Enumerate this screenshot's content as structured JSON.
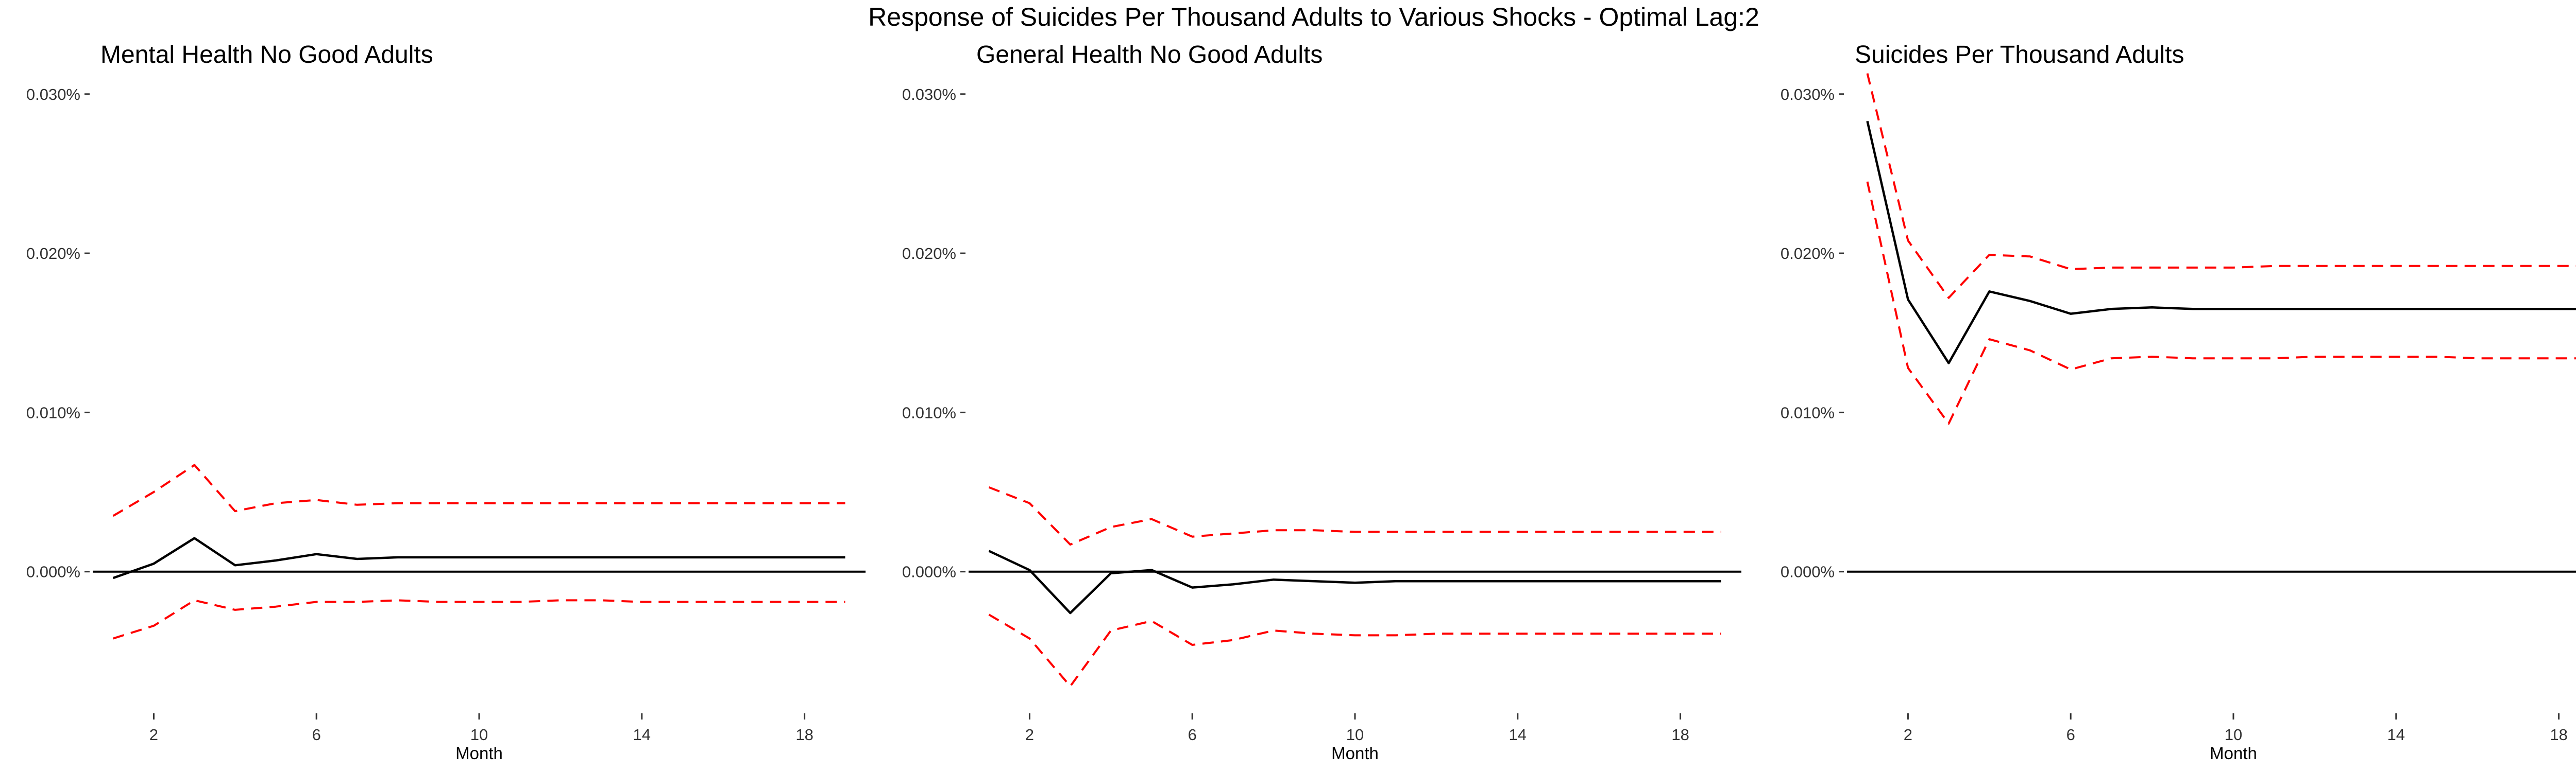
{
  "title": "Response of Suicides Per Thousand Adults to Various Shocks - Optimal Lag:2",
  "colors": {
    "response": "#000000",
    "ci": "#FF0000",
    "zero_line": "#000000"
  },
  "chart_data": [
    {
      "type": "line",
      "title": "Mental Health No Good Adults",
      "xlabel": "Month",
      "ylabel": "",
      "xlim": [
        0.5,
        19.5
      ],
      "ylim": [
        -0.01,
        0.033
      ],
      "x_ticks": [
        2,
        6,
        10,
        14,
        18
      ],
      "x_tick_labels": [
        "2",
        "6",
        "10",
        "14",
        "18"
      ],
      "y_ticks": [
        0,
        0.01,
        0.02,
        0.03
      ],
      "y_tick_labels": [
        "0.000%",
        "0.010%",
        "0.020%",
        "0.030%"
      ],
      "zero_line": true,
      "grid": false,
      "x": [
        1,
        2,
        3,
        4,
        5,
        6,
        7,
        8,
        9,
        10,
        11,
        12,
        13,
        14,
        15,
        16,
        17,
        18,
        19
      ],
      "series": [
        {
          "role": "response",
          "style": "solid",
          "values": [
            -0.0004,
            0.0005,
            0.0021,
            0.0004,
            0.0007,
            0.0011,
            0.0008,
            0.0009,
            0.0009,
            0.0009,
            0.0009,
            0.0009,
            0.0009,
            0.0009,
            0.0009,
            0.0009,
            0.0009,
            0.0009,
            0.0009
          ]
        },
        {
          "role": "upper",
          "style": "dashed",
          "values": [
            0.0035,
            0.005,
            0.0067,
            0.0038,
            0.0043,
            0.0045,
            0.0042,
            0.0043,
            0.0043,
            0.0043,
            0.0043,
            0.0043,
            0.0043,
            0.0043,
            0.0043,
            0.0043,
            0.0043,
            0.0043,
            0.0043
          ]
        },
        {
          "role": "lower",
          "style": "dashed",
          "values": [
            -0.0042,
            -0.0034,
            -0.0018,
            -0.0024,
            -0.0022,
            -0.0019,
            -0.0019,
            -0.0018,
            -0.0019,
            -0.0019,
            -0.0019,
            -0.0018,
            -0.0018,
            -0.0019,
            -0.0019,
            -0.0019,
            -0.0019,
            -0.0019,
            -0.0019
          ]
        }
      ]
    },
    {
      "type": "line",
      "title": "General Health No Good Adults",
      "xlabel": "Month",
      "ylabel": "",
      "xlim": [
        0.5,
        19.5
      ],
      "ylim": [
        -0.01,
        0.033
      ],
      "x_ticks": [
        2,
        6,
        10,
        14,
        18
      ],
      "x_tick_labels": [
        "2",
        "6",
        "10",
        "14",
        "18"
      ],
      "y_ticks": [
        0,
        0.01,
        0.02,
        0.03
      ],
      "y_tick_labels": [
        "0.000%",
        "0.010%",
        "0.020%",
        "0.030%"
      ],
      "zero_line": true,
      "grid": false,
      "x": [
        1,
        2,
        3,
        4,
        5,
        6,
        7,
        8,
        9,
        10,
        11,
        12,
        13,
        14,
        15,
        16,
        17,
        18,
        19
      ],
      "series": [
        {
          "role": "response",
          "style": "solid",
          "values": [
            0.0013,
            0.0001,
            -0.0026,
            -0.0001,
            0.0001,
            -0.001,
            -0.0008,
            -0.0005,
            -0.0006,
            -0.0007,
            -0.0006,
            -0.0006,
            -0.0006,
            -0.0006,
            -0.0006,
            -0.0006,
            -0.0006,
            -0.0006,
            -0.0006
          ]
        },
        {
          "role": "upper",
          "style": "dashed",
          "values": [
            0.0053,
            0.0043,
            0.0017,
            0.0028,
            0.0033,
            0.0022,
            0.0024,
            0.0026,
            0.0026,
            0.0025,
            0.0025,
            0.0025,
            0.0025,
            0.0025,
            0.0025,
            0.0025,
            0.0025,
            0.0025,
            0.0025
          ]
        },
        {
          "role": "lower",
          "style": "dashed",
          "values": [
            -0.0027,
            -0.0042,
            -0.0072,
            -0.0037,
            -0.0031,
            -0.0046,
            -0.0043,
            -0.0037,
            -0.0039,
            -0.004,
            -0.004,
            -0.0039,
            -0.0039,
            -0.0039,
            -0.0039,
            -0.0039,
            -0.0039,
            -0.0039,
            -0.0039
          ]
        }
      ]
    },
    {
      "type": "line",
      "title": "Suicides Per Thousand Adults",
      "xlabel": "Month",
      "ylabel": "",
      "xlim": [
        0.5,
        19.5
      ],
      "ylim": [
        -0.01,
        0.033
      ],
      "x_ticks": [
        2,
        6,
        10,
        14,
        18
      ],
      "x_tick_labels": [
        "2",
        "6",
        "10",
        "14",
        "18"
      ],
      "y_ticks": [
        0,
        0.01,
        0.02,
        0.03
      ],
      "y_tick_labels": [
        "0.000%",
        "0.010%",
        "0.020%",
        "0.030%"
      ],
      "zero_line": true,
      "grid": false,
      "x": [
        1,
        2,
        3,
        4,
        5,
        6,
        7,
        8,
        9,
        10,
        11,
        12,
        13,
        14,
        15,
        16,
        17,
        18,
        19
      ],
      "series": [
        {
          "role": "response",
          "style": "solid",
          "values": [
            0.0283,
            0.0171,
            0.0131,
            0.0176,
            0.017,
            0.0162,
            0.0165,
            0.0166,
            0.0165,
            0.0165,
            0.0165,
            0.0165,
            0.0165,
            0.0165,
            0.0165,
            0.0165,
            0.0165,
            0.0165,
            0.0165
          ]
        },
        {
          "role": "upper",
          "style": "dashed",
          "values": [
            0.0313,
            0.0208,
            0.0172,
            0.0199,
            0.0198,
            0.019,
            0.0191,
            0.0191,
            0.0191,
            0.0191,
            0.0192,
            0.0192,
            0.0192,
            0.0192,
            0.0192,
            0.0192,
            0.0192,
            0.0192,
            0.0192
          ]
        },
        {
          "role": "lower",
          "style": "dashed",
          "values": [
            0.0245,
            0.0128,
            0.0093,
            0.0146,
            0.0139,
            0.0127,
            0.0134,
            0.0135,
            0.0134,
            0.0134,
            0.0134,
            0.0135,
            0.0135,
            0.0135,
            0.0135,
            0.0134,
            0.0134,
            0.0134,
            0.0134
          ]
        }
      ]
    }
  ]
}
